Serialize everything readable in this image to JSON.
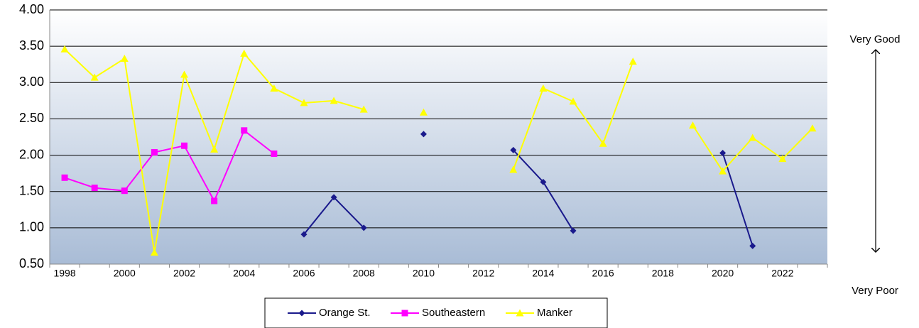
{
  "chart_data": {
    "type": "line",
    "categories": [
      "1998",
      null,
      "2000",
      null,
      "2002",
      null,
      "2004",
      null,
      "2006",
      null,
      "2008",
      null,
      "2010",
      null,
      "2012",
      null,
      "2014",
      null,
      "2016",
      null,
      "2018",
      null,
      "2020",
      null,
      "2022",
      null
    ],
    "series": [
      {
        "name": "Orange St.",
        "color": "#1a1a8c",
        "marker": "diamond",
        "values": [
          null,
          null,
          null,
          null,
          null,
          null,
          null,
          null,
          0.91,
          1.42,
          1.0,
          null,
          2.29,
          null,
          null,
          2.07,
          1.63,
          0.96,
          null,
          null,
          null,
          null,
          2.03,
          0.75,
          null,
          null
        ]
      },
      {
        "name": "Southeastern",
        "color": "#ff00ff",
        "marker": "square",
        "values": [
          1.69,
          1.55,
          1.51,
          2.04,
          2.13,
          1.37,
          2.34,
          2.02,
          null,
          null,
          null,
          null,
          null,
          null,
          null,
          null,
          null,
          null,
          null,
          null,
          null,
          null,
          null,
          null,
          null,
          null
        ]
      },
      {
        "name": "Manker",
        "color": "#ffff00",
        "marker": "triangle",
        "values": [
          3.46,
          3.07,
          3.33,
          0.66,
          3.11,
          2.08,
          3.4,
          2.92,
          2.72,
          2.75,
          2.63,
          null,
          2.59,
          null,
          null,
          1.8,
          2.92,
          2.74,
          2.16,
          3.29,
          null,
          2.41,
          1.78,
          2.24,
          1.95,
          2.37
        ]
      }
    ],
    "ylim": [
      0.5,
      4.0
    ],
    "yticks": [
      {
        "value": 0.5,
        "label": "0.50"
      },
      {
        "value": 1.0,
        "label": "1.00"
      },
      {
        "value": 1.5,
        "label": "1.50"
      },
      {
        "value": 2.0,
        "label": "2.00"
      },
      {
        "value": 2.5,
        "label": "2.50"
      },
      {
        "value": 3.0,
        "label": "3.00"
      },
      {
        "value": 3.5,
        "label": "3.50"
      },
      {
        "value": 4.0,
        "label": "4.00"
      }
    ],
    "grid": true,
    "legend": "bottom",
    "annotations": [
      "Very Good",
      "Very Poor"
    ]
  }
}
